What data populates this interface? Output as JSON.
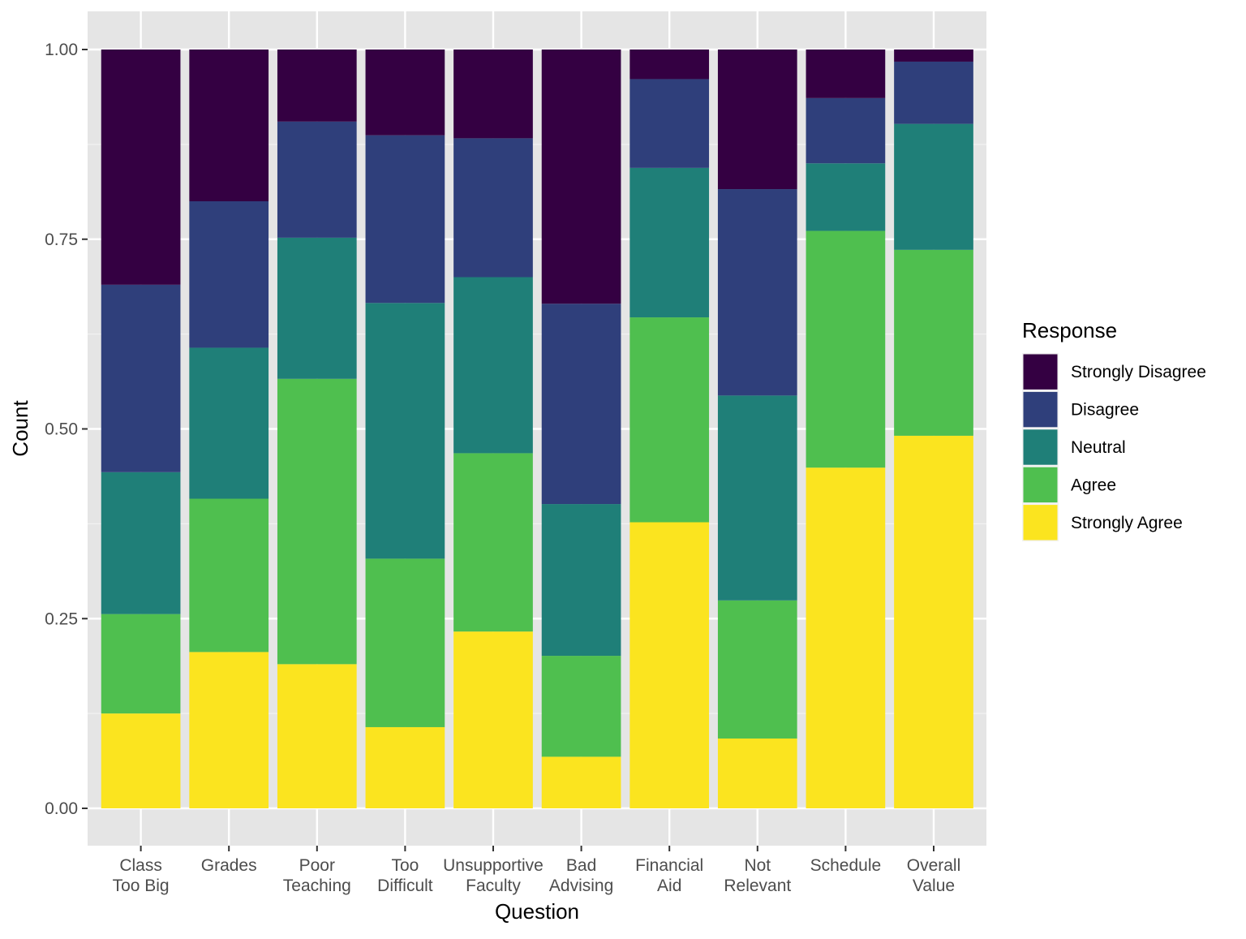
{
  "chart_data": {
    "type": "bar",
    "stacked": true,
    "position": "fill",
    "xlabel": "Question",
    "ylabel": "Count",
    "ylim": [
      0,
      1
    ],
    "y_ticks": [
      "0.00",
      "0.25",
      "0.50",
      "0.75",
      "1.00"
    ],
    "y_tick_values": [
      0,
      0.25,
      0.5,
      0.75,
      1
    ],
    "grid": true,
    "categories": [
      [
        "Class",
        "Too Big"
      ],
      [
        "Grades"
      ],
      [
        "Poor",
        "Teaching"
      ],
      [
        "Too",
        "Difficult"
      ],
      [
        "Unsupportive",
        "Faculty"
      ],
      [
        "Bad",
        "Advising"
      ],
      [
        "Financial",
        "Aid"
      ],
      [
        "Not",
        "Relevant"
      ],
      [
        "Schedule"
      ],
      [
        "Overall",
        "Value"
      ]
    ],
    "legend": {
      "title": "Response",
      "placement": "right"
    },
    "series": [
      {
        "name": "Strongly Disagree",
        "color": "#340042",
        "values": [
          0.31,
          0.2,
          0.095,
          0.113,
          0.117,
          0.335,
          0.039,
          0.184,
          0.064,
          0.016
        ]
      },
      {
        "name": "Disagree",
        "color": "#2f3f7b",
        "values": [
          0.247,
          0.193,
          0.153,
          0.221,
          0.183,
          0.264,
          0.117,
          0.272,
          0.086,
          0.082
        ]
      },
      {
        "name": "Neutral",
        "color": "#1f7f78",
        "values": [
          0.187,
          0.199,
          0.186,
          0.337,
          0.232,
          0.2,
          0.197,
          0.27,
          0.089,
          0.166
        ]
      },
      {
        "name": "Agree",
        "color": "#4fbf4f",
        "values": [
          0.131,
          0.202,
          0.376,
          0.222,
          0.235,
          0.133,
          0.27,
          0.182,
          0.312,
          0.245
        ]
      },
      {
        "name": "Strongly Agree",
        "color": "#fbe41f",
        "values": [
          0.125,
          0.206,
          0.19,
          0.107,
          0.233,
          0.068,
          0.377,
          0.092,
          0.449,
          0.491
        ]
      }
    ]
  }
}
